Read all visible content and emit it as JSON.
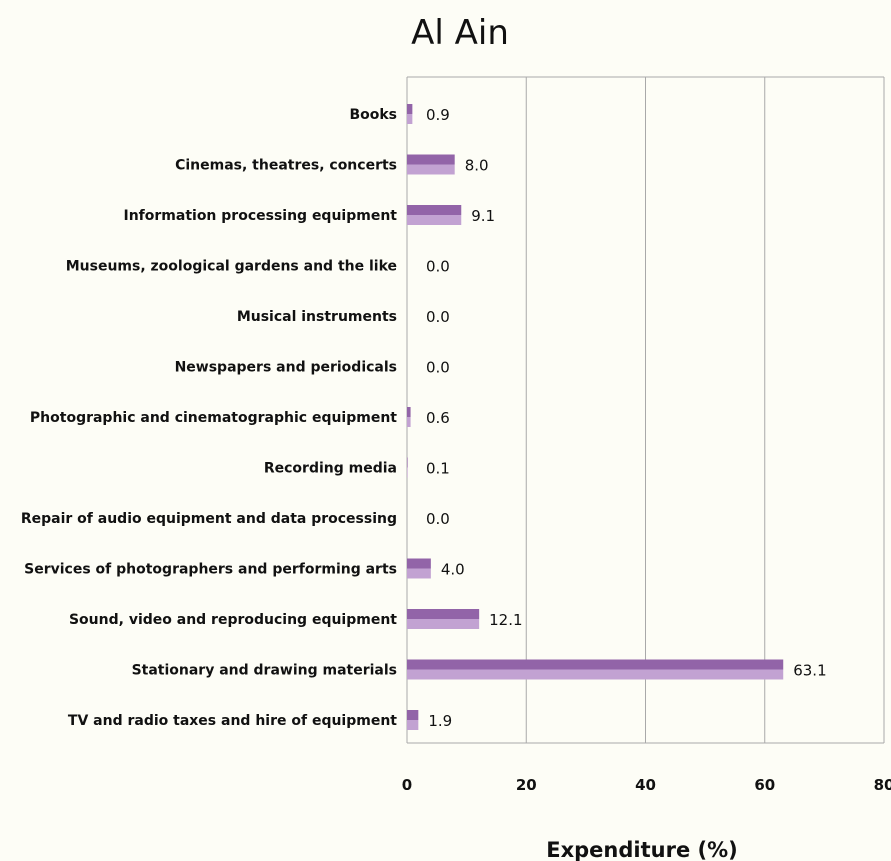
{
  "chart_data": {
    "type": "bar",
    "orientation": "horizontal",
    "title": "Al Ain",
    "xlabel": "Expenditure (%)",
    "ylabel": "",
    "xlim": [
      0,
      80
    ],
    "x_ticks": [
      0,
      20,
      40,
      60,
      80
    ],
    "grid": true,
    "legend": "none",
    "colors": {
      "bar_top": "#9264a8",
      "bar_bottom": "#c2a2d2",
      "grid": "#a9a9a9",
      "background": "#fdfdf6"
    },
    "categories": [
      "Books",
      "Cinemas, theatres, concerts",
      "Information processing equipment",
      "Museums, zoological gardens and the like",
      "Musical instruments",
      "Newspapers and periodicals",
      "Photographic and cinematographic equipment",
      "Recording media",
      "Repair of audio equipment and data processing",
      "Services of photographers and performing arts",
      "Sound, video and reproducing equipment",
      "Stationary and drawing materials",
      "TV and radio taxes and hire of equipment"
    ],
    "values": [
      0.9,
      8.0,
      9.1,
      0.0,
      0.0,
      0.0,
      0.6,
      0.1,
      0.0,
      4.0,
      12.1,
      63.1,
      1.9
    ],
    "value_labels": [
      "0.9",
      "8.0",
      "9.1",
      "0.0",
      "0.0",
      "0.0",
      "0.6",
      "0.1",
      "0.0",
      "4.0",
      "12.1",
      "63.1",
      "1.9"
    ]
  }
}
